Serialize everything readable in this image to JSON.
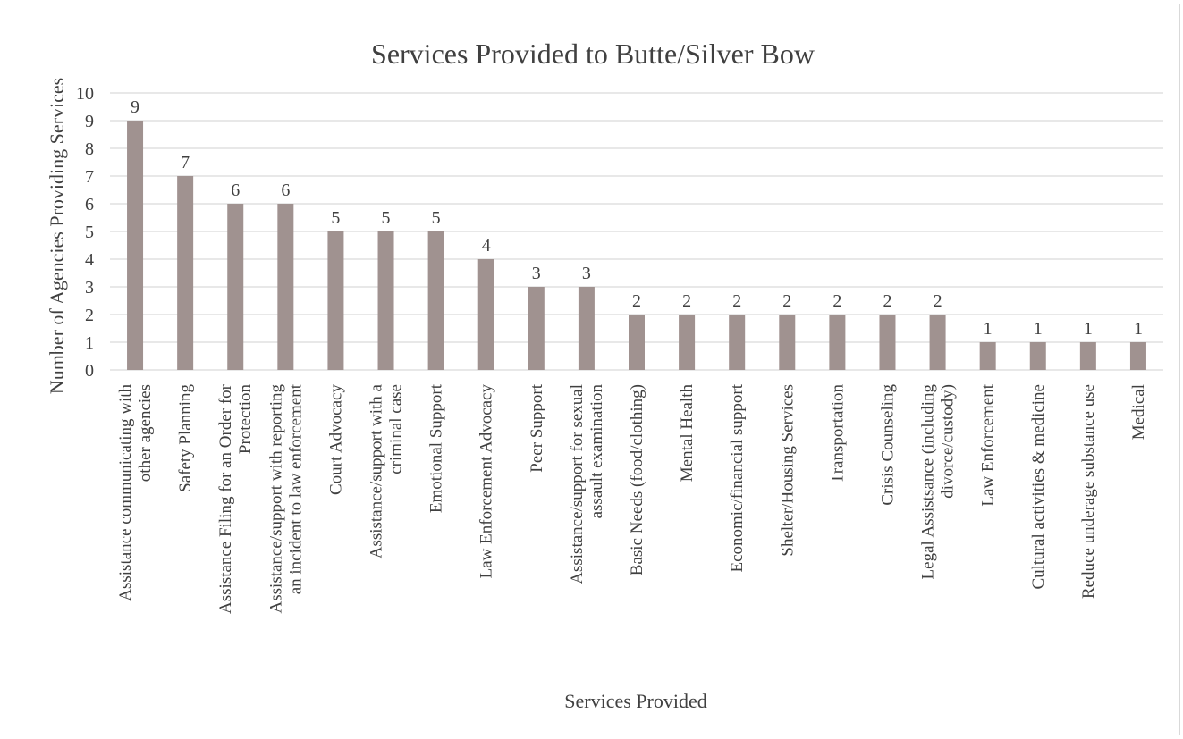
{
  "chart_data": {
    "type": "bar",
    "title": "Services Provided to Butte/Silver Bow",
    "xlabel": "Services Provided",
    "ylabel": "Number of Agencies Providing Services",
    "ylim": [
      0,
      10
    ],
    "yticks": [
      0,
      1,
      2,
      3,
      4,
      5,
      6,
      7,
      8,
      9,
      10
    ],
    "grid": true,
    "legend": "none",
    "categories": [
      "Assistance communicating with other agencies",
      "Safety Planning",
      "Assistance Filing for an Order for Protection",
      "Assistance/support with reporting an incident to law enforcement",
      "Court Advocacy",
      "Assistance/support with a criminal case",
      "Emotional Support",
      "Law Enforcement Advocacy",
      "Peer Support",
      "Assistance/support for sexual assault examination",
      "Basic Needs (food/clothing)",
      "Mental Health",
      "Economic/financial support",
      "Shelter/Housing Services",
      "Transportation",
      "Crisis Counseling",
      "Legal Assistsance (including divorce/custody)",
      "Law Enforcement",
      "Cultural activities & medicine",
      "Reduce underage substance use",
      "Medical"
    ],
    "category_label_lines": [
      [
        "Assistance communicating with",
        "other agencies"
      ],
      [
        "Safety Planning"
      ],
      [
        "Assistance Filing for an Order for",
        "Protection"
      ],
      [
        "Assistance/support with reporting",
        "an incident to law enforcement"
      ],
      [
        "Court Advocacy"
      ],
      [
        "Assistance/support with a",
        "criminal case"
      ],
      [
        "Emotional Support"
      ],
      [
        "Law Enforcement Advocacy"
      ],
      [
        "Peer Support"
      ],
      [
        "Assistance/support for sexual",
        "assault examination"
      ],
      [
        "Basic Needs (food/clothing)"
      ],
      [
        "Mental Health"
      ],
      [
        "Economic/financial support"
      ],
      [
        "Shelter/Housing Services"
      ],
      [
        "Transportation"
      ],
      [
        "Crisis Counseling"
      ],
      [
        "Legal Assistsance (including",
        "divorce/custody)"
      ],
      [
        "Law Enforcement"
      ],
      [
        "Cultural activities & medicine"
      ],
      [
        "Reduce underage substance use"
      ],
      [
        "Medical"
      ]
    ],
    "values": [
      9,
      7,
      6,
      6,
      5,
      5,
      5,
      4,
      3,
      3,
      2,
      2,
      2,
      2,
      2,
      2,
      2,
      1,
      1,
      1,
      1
    ],
    "colors": {
      "bar": "#a09290",
      "grid": "#d9d9d9",
      "text": "#404040",
      "axis": "#d9d9d9"
    }
  }
}
